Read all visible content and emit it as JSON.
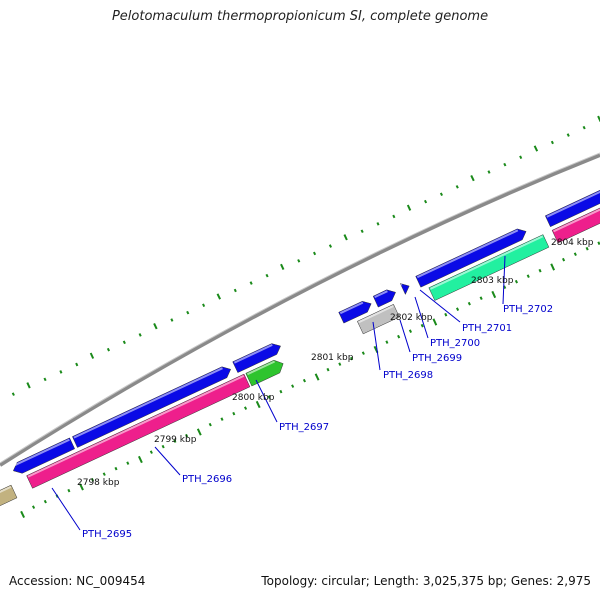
{
  "title": "Pelotomaculum thermopropionicum SI, complete genome",
  "footer": {
    "accession": "Accession: NC_009454",
    "summary": "Topology: circular; Length: 3,025,375 bp; Genes: 2,975"
  },
  "colors": {
    "blue": "#0a0ae6",
    "pink": "#ee1f8c",
    "green": "#2ec42e",
    "gray": "#c0c0c0",
    "mint": "#22f0a0",
    "olive": "#c2b280",
    "backbone": "#8a8a8a",
    "tick": "#1a8a1a",
    "label": "#0000cc"
  },
  "kbp_labels": [
    "2798 kbp",
    "2799 kbp",
    "2800 kbp",
    "2801 kbp",
    "2802 kbp",
    "2803 kbp",
    "2804 kbp"
  ],
  "genes": [
    {
      "label": "PTH_2695",
      "color": "pink"
    },
    {
      "label": "PTH_2696",
      "color": "blue"
    },
    {
      "label": "PTH_2697",
      "color": "green"
    },
    {
      "label": "PTH_2698",
      "color": "gray"
    },
    {
      "label": "PTH_2699",
      "color": "blue"
    },
    {
      "label": "PTH_2700",
      "color": "blue"
    },
    {
      "label": "PTH_2701",
      "color": "mint"
    },
    {
      "label": "PTH_2702",
      "color": "blue"
    }
  ]
}
